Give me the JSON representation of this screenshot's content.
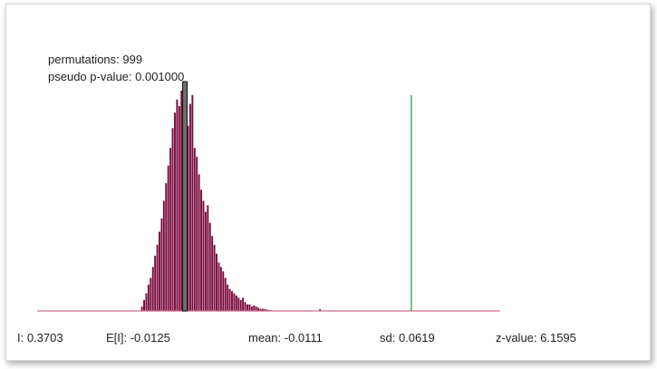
{
  "permutations_text": "permutations: 999",
  "pvalue_text": "pseudo p-value: 0.001000",
  "footer": {
    "moran_i": "I: 0.3703",
    "expected_i": "E[I]: -0.0125",
    "mean": "mean: -0.0111",
    "sd": "sd: 0.0619",
    "z_value": "z-value: 6.1595"
  },
  "colors": {
    "bars": "#7a0c3c",
    "baseline": "#d07090",
    "observed_line": "#2a9a50",
    "mean_marker": "#6e6e6e",
    "mean_marker_border": "#111111"
  },
  "chart_data": {
    "type": "bar",
    "title": "",
    "xlabel": "",
    "ylabel": "",
    "xlim": [
      -0.26,
      0.52
    ],
    "ylim": [
      0,
      1
    ],
    "x_start": -0.085,
    "bin_width": 0.0037,
    "values": [
      0.02,
      0.05,
      0.08,
      0.12,
      0.15,
      0.2,
      0.25,
      0.3,
      0.36,
      0.42,
      0.5,
      0.58,
      0.66,
      0.74,
      0.83,
      0.9,
      0.96,
      0.93,
      1.0,
      0.97,
      0.9,
      0.84,
      0.94,
      0.98,
      0.74,
      0.7,
      0.62,
      0.55,
      0.5,
      0.45,
      0.48,
      0.4,
      0.34,
      0.3,
      0.26,
      0.22,
      0.2,
      0.18,
      0.15,
      0.12,
      0.1,
      0.09,
      0.08,
      0.07,
      0.06,
      0.05,
      0.06,
      0.04,
      0.03,
      0.03,
      0.02,
      0.025,
      0.02,
      0.015,
      0.01,
      0.01,
      0.008,
      0.006,
      0.004,
      0.003
    ],
    "extra_bars": [
      {
        "x": 0.215,
        "value": 0.008
      }
    ],
    "mean_marker_x": -0.0111,
    "observed_I": 0.3703,
    "grid": false,
    "legend": "none"
  }
}
